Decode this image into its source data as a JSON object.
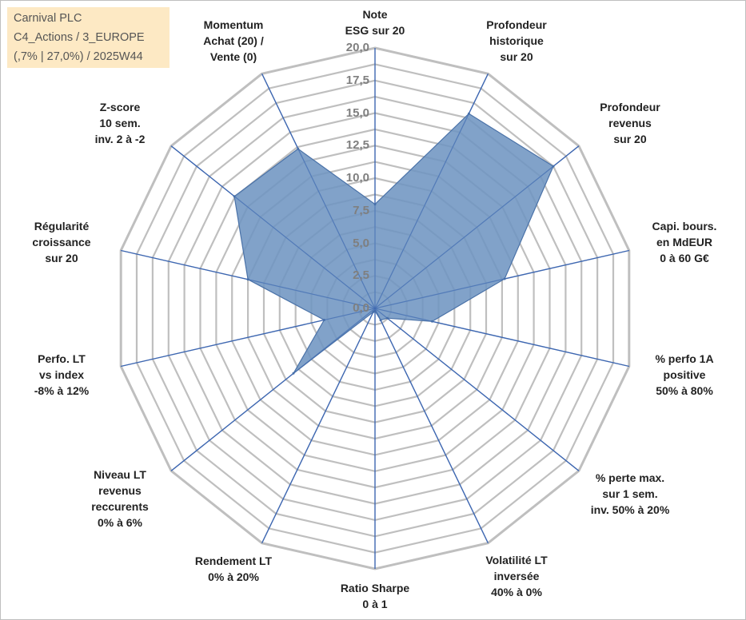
{
  "info": {
    "line1": "Carnival PLC",
    "line2": "C4_Actions / 3_EUROPE",
    "line3": "(,7% | 27,0%) / 2025W44"
  },
  "colors": {
    "fill": "#7095c1",
    "stroke": "#4a72a8",
    "spoke": "#3e67b1",
    "grid": "#bfbfbf",
    "info_bg": "#fde9c4"
  },
  "chart_data": {
    "type": "radar",
    "title": "",
    "rlim": [
      0,
      20
    ],
    "ticks": [
      "0,0",
      "2,5",
      "5,0",
      "7,5",
      "10,0",
      "12,5",
      "15,0",
      "17,5",
      "20,0"
    ],
    "tick_values": [
      0,
      2.5,
      5,
      7.5,
      10,
      12.5,
      15,
      17.5,
      20
    ],
    "grid_step": 1.25,
    "axes": [
      {
        "lines": [
          "Note",
          "ESG sur 20"
        ]
      },
      {
        "lines": [
          "Profondeur",
          "historique",
          "sur 20"
        ]
      },
      {
        "lines": [
          "Profondeur",
          "revenus",
          "sur 20"
        ]
      },
      {
        "lines": [
          "Capi. bours.",
          "en MdEUR",
          "0 à 60 G€"
        ]
      },
      {
        "lines": [
          "% perfo 1A",
          "positive",
          "50% à 80%"
        ]
      },
      {
        "lines": [
          "% perte max.",
          "sur 1 sem.",
          "inv. 50% à 20%"
        ]
      },
      {
        "lines": [
          "Volatilité LT",
          "inversée",
          "40% à 0%"
        ]
      },
      {
        "lines": [
          "Ratio Sharpe",
          "0 à 1"
        ]
      },
      {
        "lines": [
          "Rendement LT",
          "0% à 20%"
        ]
      },
      {
        "lines": [
          "Niveau LT",
          "revenus",
          "reccurents",
          "0% à 6%"
        ]
      },
      {
        "lines": [
          "Perfo. LT",
          "vs index",
          "-8% à 12%"
        ]
      },
      {
        "lines": [
          "Régularité",
          "croissance",
          "sur 20"
        ]
      },
      {
        "lines": [
          "Z-score",
          "10 sem.",
          "inv. 2 à -2"
        ]
      },
      {
        "lines": [
          "Momentum",
          "Achat (20) /",
          "Vente (0)"
        ]
      }
    ],
    "series": [
      {
        "name": "Carnival PLC",
        "values": [
          8.0,
          16.6,
          17.5,
          10.2,
          4.5,
          1.2,
          1.0,
          0.2,
          0.3,
          8.0,
          4.0,
          10.0,
          13.8,
          13.6
        ]
      }
    ]
  }
}
